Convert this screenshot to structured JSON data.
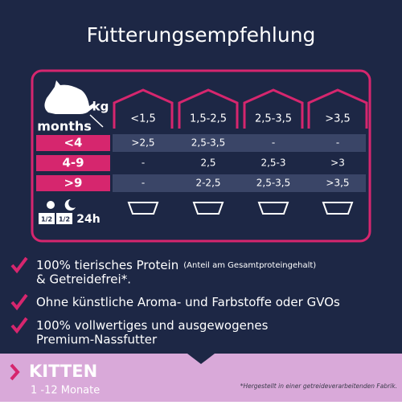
{
  "title": "Fütterungsempfehlung",
  "table": {
    "weight_unit": "kg",
    "age_unit": "months",
    "columns": [
      "<1,5",
      "1,5-2,5",
      "2,5-3,5",
      ">3,5"
    ],
    "rows": [
      {
        "label": "<4",
        "values": [
          ">2,5",
          "2,5-3,5",
          "-",
          "-"
        ]
      },
      {
        "label": "4-9",
        "values": [
          "-",
          "2,5",
          "2,5-3",
          ">3"
        ]
      },
      {
        "label": ">9",
        "values": [
          "-",
          "2-2,5",
          "2,5-3,5",
          ">3,5"
        ]
      }
    ],
    "portions": [
      "1/2",
      "1/2"
    ],
    "portion_time": "24h"
  },
  "benefits": [
    {
      "main": "100% tierisches Protein",
      "note": "(Anteil am Gesamtproteingehalt)",
      "continuation": "& Getreidefrei*."
    },
    {
      "main": "Ohne künstliche Aroma- und Farbstoffe oder GVOs"
    },
    {
      "main": "100% vollwertiges und ausgewogenes",
      "continuation": "Premium-Nassfutter"
    }
  ],
  "footer": {
    "product": "KITTEN",
    "age": "1 -12 Monate",
    "footnote": "*Hergestellt in einer getreideverarbeitenden Fabrik."
  }
}
